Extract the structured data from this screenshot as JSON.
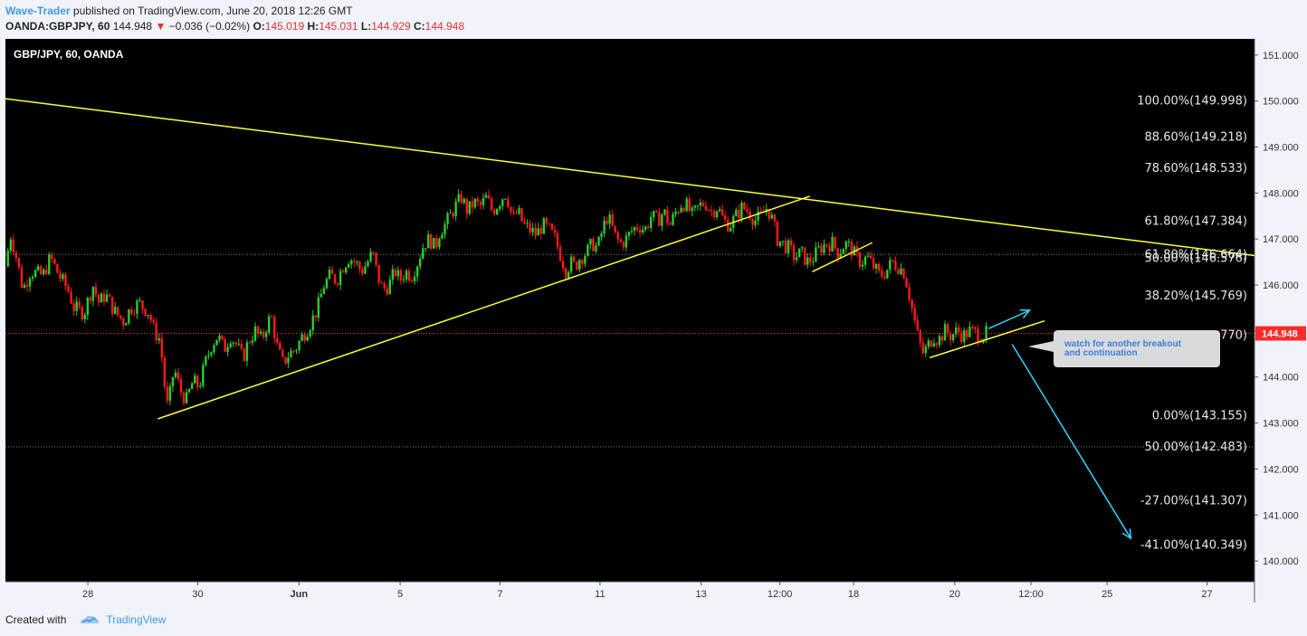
{
  "header": {
    "author": "Wave-Trader",
    "published_text": " published on TradingView.com, June 20, 2018 12:26 GMT",
    "symbol": "OANDA:GBPJPY, 60",
    "last": "144.948",
    "change": "−0.036 (−0.02%)",
    "o_label": "O:",
    "o_value": "145.019",
    "h_label": "H:",
    "h_value": "145.031",
    "l_label": "L:",
    "l_value": "144.929",
    "c_label": "C:",
    "c_value": "144.948"
  },
  "footer": {
    "created_with": "Created with",
    "brand": "TradingView"
  },
  "colors": {
    "background": "#000000",
    "up": "#2ecc2e",
    "down": "#ff1a1a",
    "trendline": "#ffff33",
    "projection": "#33d6ff",
    "price_tag": "#ff2b2b"
  },
  "chart_data": {
    "type": "candlestick",
    "title": "GBP/JPY, 60, OANDA",
    "ylim": [
      139.55,
      151.35
    ],
    "y_ticks": [
      "140.000",
      "141.000",
      "142.000",
      "143.000",
      "144.000",
      "145.000",
      "146.000",
      "147.000",
      "148.000",
      "149.000",
      "150.000",
      "151.000"
    ],
    "x_ticks": [
      {
        "label": "28",
        "x": 0.066
      },
      {
        "label": "30",
        "x": 0.154
      },
      {
        "label": "Jun",
        "x": 0.235
      },
      {
        "label": "5",
        "x": 0.316
      },
      {
        "label": "7",
        "x": 0.396
      },
      {
        "label": "11",
        "x": 0.476
      },
      {
        "label": "13",
        "x": 0.557
      },
      {
        "label": "12:00",
        "x": 0.62
      },
      {
        "label": "18",
        "x": 0.679
      },
      {
        "label": "20",
        "x": 0.76
      },
      {
        "label": "12:00",
        "x": 0.821
      },
      {
        "label": "25",
        "x": 0.882
      },
      {
        "label": "27",
        "x": 0.962
      }
    ],
    "price_path": [
      [
        0.0,
        146.4
      ],
      [
        0.004,
        147.1
      ],
      [
        0.008,
        146.7
      ],
      [
        0.014,
        145.9
      ],
      [
        0.02,
        146.3
      ],
      [
        0.03,
        146.2
      ],
      [
        0.036,
        146.6
      ],
      [
        0.043,
        146.2
      ],
      [
        0.05,
        145.9
      ],
      [
        0.055,
        145.5
      ],
      [
        0.063,
        145.4
      ],
      [
        0.07,
        146.0
      ],
      [
        0.075,
        145.6
      ],
      [
        0.08,
        145.8
      ],
      [
        0.088,
        145.4
      ],
      [
        0.095,
        145.2
      ],
      [
        0.1,
        145.5
      ],
      [
        0.107,
        145.6
      ],
      [
        0.115,
        145.4
      ],
      [
        0.119,
        145.0
      ],
      [
        0.124,
        144.8
      ],
      [
        0.127,
        143.9
      ],
      [
        0.13,
        143.3
      ],
      [
        0.135,
        144.2
      ],
      [
        0.14,
        143.7
      ],
      [
        0.145,
        143.5
      ],
      [
        0.15,
        143.9
      ],
      [
        0.155,
        143.8
      ],
      [
        0.16,
        144.3
      ],
      [
        0.165,
        144.7
      ],
      [
        0.17,
        144.9
      ],
      [
        0.175,
        144.6
      ],
      [
        0.18,
        144.9
      ],
      [
        0.185,
        144.7
      ],
      [
        0.19,
        144.4
      ],
      [
        0.195,
        144.8
      ],
      [
        0.2,
        145.0
      ],
      [
        0.205,
        144.8
      ],
      [
        0.21,
        145.2
      ],
      [
        0.213,
        145.3
      ],
      [
        0.218,
        144.6
      ],
      [
        0.222,
        144.3
      ],
      [
        0.227,
        144.5
      ],
      [
        0.232,
        144.6
      ],
      [
        0.238,
        144.9
      ],
      [
        0.243,
        145.1
      ],
      [
        0.25,
        145.5
      ],
      [
        0.255,
        146.0
      ],
      [
        0.26,
        146.2
      ],
      [
        0.265,
        146.1
      ],
      [
        0.27,
        146.4
      ],
      [
        0.275,
        146.6
      ],
      [
        0.28,
        146.5
      ],
      [
        0.285,
        146.3
      ],
      [
        0.29,
        146.5
      ],
      [
        0.294,
        146.7
      ],
      [
        0.298,
        146.2
      ],
      [
        0.302,
        145.9
      ],
      [
        0.307,
        146.0
      ],
      [
        0.312,
        146.3
      ],
      [
        0.316,
        146.1
      ],
      [
        0.32,
        146.3
      ],
      [
        0.325,
        146.2
      ],
      [
        0.33,
        146.5
      ],
      [
        0.335,
        146.9
      ],
      [
        0.34,
        147.0
      ],
      [
        0.344,
        146.8
      ],
      [
        0.348,
        147.2
      ],
      [
        0.352,
        147.3
      ],
      [
        0.356,
        147.5
      ],
      [
        0.36,
        147.7
      ],
      [
        0.365,
        147.9
      ],
      [
        0.37,
        147.6
      ],
      [
        0.375,
        147.8
      ],
      [
        0.38,
        147.7
      ],
      [
        0.385,
        147.9
      ],
      [
        0.39,
        147.6
      ],
      [
        0.395,
        147.8
      ],
      [
        0.4,
        148.0
      ],
      [
        0.403,
        147.8
      ],
      [
        0.406,
        147.4
      ],
      [
        0.41,
        147.6
      ],
      [
        0.415,
        147.3
      ],
      [
        0.42,
        147.2
      ],
      [
        0.425,
        147.1
      ],
      [
        0.43,
        147.3
      ],
      [
        0.435,
        147.2
      ],
      [
        0.44,
        147.0
      ],
      [
        0.445,
        146.6
      ],
      [
        0.449,
        146.3
      ],
      [
        0.452,
        146.5
      ],
      [
        0.456,
        146.4
      ],
      [
        0.46,
        146.6
      ],
      [
        0.465,
        146.7
      ],
      [
        0.47,
        146.9
      ],
      [
        0.474,
        146.8
      ],
      [
        0.478,
        147.2
      ],
      [
        0.482,
        147.5
      ],
      [
        0.485,
        147.3
      ],
      [
        0.489,
        147.0
      ],
      [
        0.493,
        146.9
      ],
      [
        0.497,
        147.0
      ],
      [
        0.502,
        147.2
      ],
      [
        0.507,
        147.3
      ],
      [
        0.512,
        147.2
      ],
      [
        0.517,
        147.5
      ],
      [
        0.522,
        147.4
      ],
      [
        0.527,
        147.6
      ],
      [
        0.532,
        147.3
      ],
      [
        0.537,
        147.6
      ],
      [
        0.542,
        147.8
      ],
      [
        0.546,
        147.7
      ],
      [
        0.55,
        147.5
      ],
      [
        0.555,
        147.7
      ],
      [
        0.56,
        147.8
      ],
      [
        0.565,
        147.6
      ],
      [
        0.57,
        147.7
      ],
      [
        0.575,
        147.4
      ],
      [
        0.58,
        147.3
      ],
      [
        0.585,
        147.5
      ],
      [
        0.59,
        147.7
      ],
      [
        0.595,
        147.6
      ],
      [
        0.6,
        147.4
      ],
      [
        0.605,
        147.5
      ],
      [
        0.61,
        147.7
      ],
      [
        0.614,
        147.4
      ],
      [
        0.618,
        147.0
      ],
      [
        0.622,
        146.9
      ],
      [
        0.627,
        146.8
      ],
      [
        0.632,
        146.6
      ],
      [
        0.637,
        146.7
      ],
      [
        0.642,
        146.5
      ],
      [
        0.647,
        146.6
      ],
      [
        0.652,
        146.8
      ],
      [
        0.657,
        146.9
      ],
      [
        0.662,
        146.9
      ],
      [
        0.667,
        146.7
      ],
      [
        0.672,
        146.9
      ],
      [
        0.677,
        146.8
      ],
      [
        0.681,
        146.6
      ],
      [
        0.685,
        146.5
      ],
      [
        0.69,
        146.6
      ],
      [
        0.695,
        146.4
      ],
      [
        0.7,
        146.2
      ],
      [
        0.705,
        146.3
      ],
      [
        0.71,
        146.5
      ],
      [
        0.715,
        146.4
      ],
      [
        0.719,
        146.3
      ],
      [
        0.722,
        146.0
      ],
      [
        0.725,
        145.6
      ],
      [
        0.728,
        145.2
      ],
      [
        0.731,
        144.8
      ],
      [
        0.735,
        144.5
      ],
      [
        0.739,
        144.7
      ],
      [
        0.743,
        144.9
      ],
      [
        0.747,
        144.8
      ],
      [
        0.752,
        145.0
      ],
      [
        0.757,
        144.9
      ],
      [
        0.762,
        145.0
      ],
      [
        0.767,
        144.9
      ],
      [
        0.772,
        145.0
      ],
      [
        0.777,
        144.95
      ],
      [
        0.782,
        144.9
      ],
      [
        0.786,
        144.95
      ]
    ],
    "fib_levels": [
      {
        "label": "100.00%(149.998)",
        "price": 149.998
      },
      {
        "label": "88.60%(149.218)",
        "price": 149.218
      },
      {
        "label": "78.60%(148.533)",
        "price": 148.533
      },
      {
        "label": "61.80%(147.384)",
        "price": 147.384
      },
      {
        "label": "61.80%(146.664)",
        "price": 146.664
      },
      {
        "label": "50.00%(146.576)",
        "price": 146.576
      },
      {
        "label": "38.20%(145.769)",
        "price": 145.769
      },
      {
        "label": "0.00%(143.155)",
        "price": 143.155
      },
      {
        "label": "50.00%(142.483)",
        "price": 142.483
      },
      {
        "label": "-27.00%(141.307)",
        "price": 141.307
      },
      {
        "label": "-41.00%(140.349)",
        "price": 140.349
      }
    ],
    "fib_partial_label": "770)",
    "dotted_levels": [
      146.664,
      144.948,
      142.483
    ],
    "trendlines": [
      {
        "x1": 0.0,
        "y1": 150.05,
        "x2": 1.0,
        "y2": 146.64
      },
      {
        "x1": 0.122,
        "y1": 143.09,
        "x2": 0.644,
        "y2": 147.93
      },
      {
        "x1": 0.646,
        "y1": 146.29,
        "x2": 0.694,
        "y2": 146.92
      },
      {
        "x1": 0.74,
        "y1": 144.42,
        "x2": 0.832,
        "y2": 145.22
      }
    ],
    "arrows": [
      {
        "x1": 0.787,
        "y1": 145.05,
        "x2": 0.82,
        "y2": 145.45
      },
      {
        "x1": 0.806,
        "y1": 144.71,
        "x2": 0.901,
        "y2": 140.49
      }
    ],
    "last_price": 144.948,
    "callout_text": [
      "watch for another breakout",
      "and continuation"
    ]
  }
}
